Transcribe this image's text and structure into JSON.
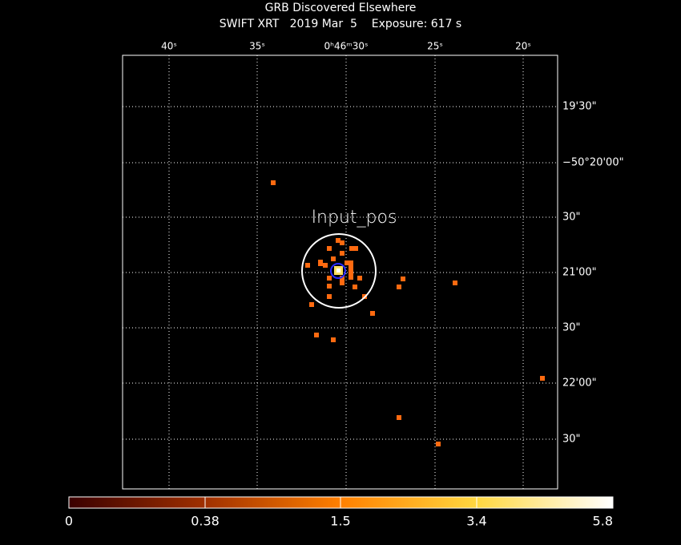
{
  "header": {
    "title": "GRB Discovered Elsewhere",
    "subtitle": "SWIFT XRT   2019 Mar  5    Exposure: 617 s"
  },
  "ra_labels": [
    "40ˢ",
    "35ˢ",
    "0ʰ46ᵐ30ˢ",
    "25ˢ",
    "20ˢ"
  ],
  "dec_labels": [
    "19'30\"",
    "−50°20'00\"",
    "30\"",
    "21'00\"",
    "30\"",
    "22'00\"",
    "30\""
  ],
  "marker_label": "Input_pos",
  "colorbar_labels": [
    "0",
    "0.38",
    "1.5",
    "3.4",
    "5.8"
  ]
}
